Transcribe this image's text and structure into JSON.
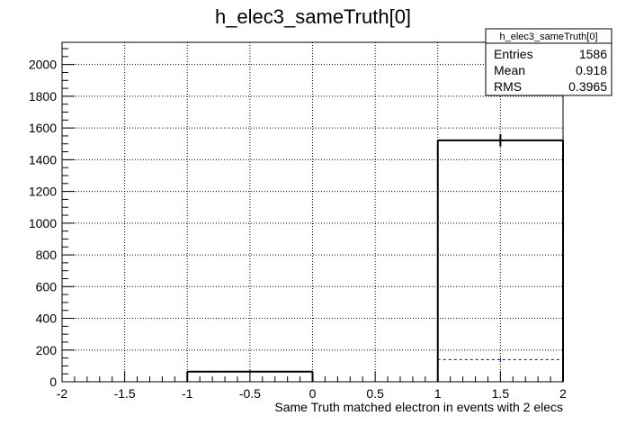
{
  "chart_data": {
    "type": "histogram",
    "title": "h_elec3_sameTruth[0]",
    "xlabel": "Same Truth matched electron in events with 2 elecs",
    "ylabel": "",
    "xlim": [
      -2,
      2
    ],
    "ylim": [
      0,
      2140
    ],
    "grid": true,
    "x_ticks": [
      "-2",
      "-1.5",
      "-1",
      "-0.5",
      "0",
      "0.5",
      "1",
      "1.5",
      "2"
    ],
    "y_ticks": [
      "0",
      "200",
      "400",
      "600",
      "800",
      "1000",
      "1200",
      "1400",
      "1600",
      "1800",
      "2000"
    ],
    "series": [
      {
        "style": "solid",
        "color": "#000000",
        "bins": [
          {
            "x_low": -1,
            "x_high": 0,
            "value": 64,
            "error": 8
          },
          {
            "x_low": 1,
            "x_high": 2,
            "value": 1522,
            "error": 39
          }
        ]
      },
      {
        "style": "dashed",
        "color": "#0000cc",
        "bins": [
          {
            "x_low": -1,
            "x_high": 0,
            "value": 0,
            "error": 0
          },
          {
            "x_low": 1,
            "x_high": 2,
            "value": 140,
            "error": 12
          }
        ]
      }
    ],
    "stats_box": {
      "title": "h_elec3_sameTruth[0]",
      "rows": [
        {
          "label": "Entries",
          "value": "1586"
        },
        {
          "label": "Mean",
          "value": "0.918"
        },
        {
          "label": "RMS",
          "value": "0.3965"
        }
      ]
    }
  }
}
